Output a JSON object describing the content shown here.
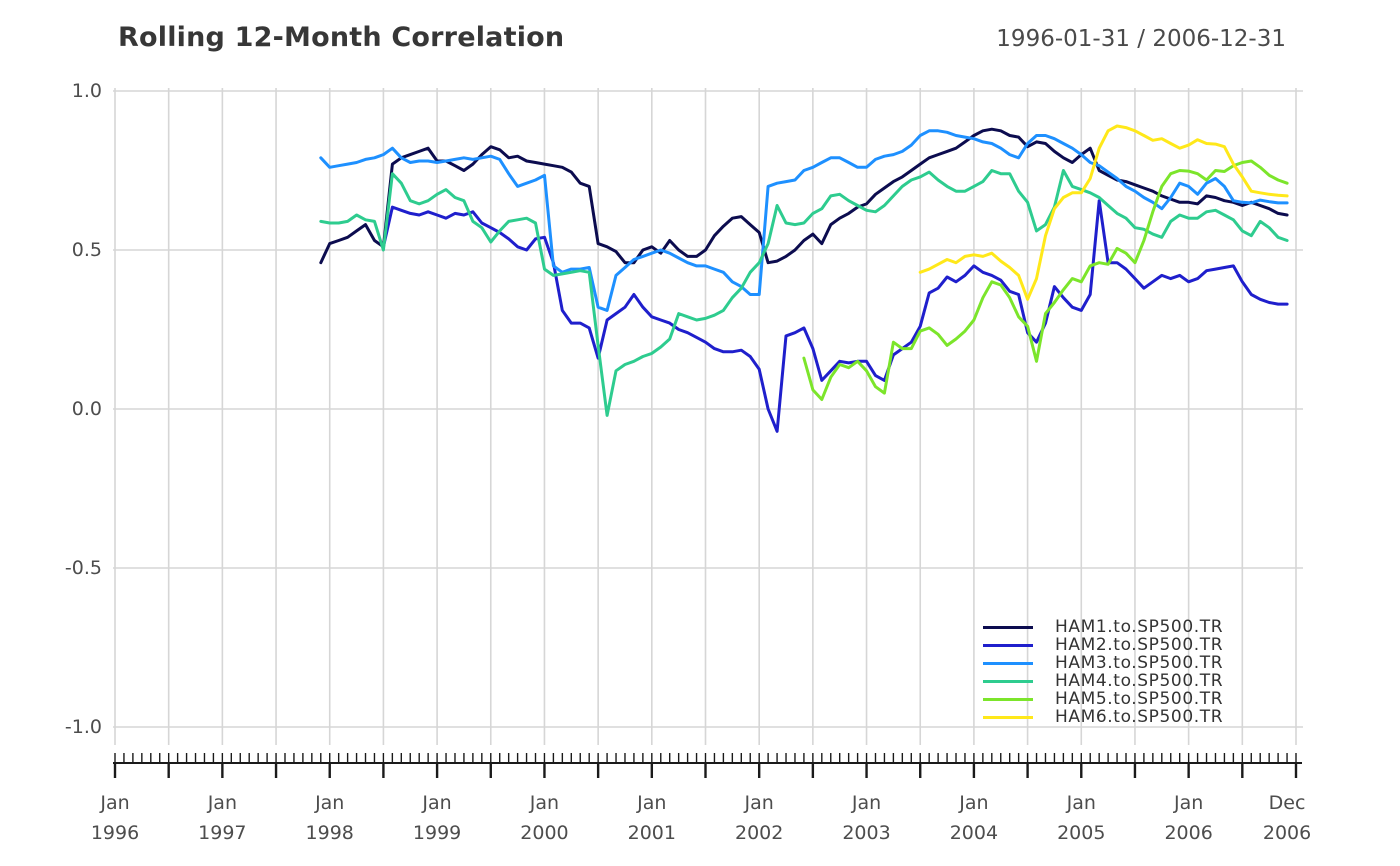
{
  "header": {
    "title": "Rolling 12-Month Correlation",
    "date_range": "1996-01-31 / 2006-12-31"
  },
  "colors": {
    "background": "#ffffff",
    "grid": "#d6d6d6",
    "axis": "#1a1a1a",
    "title_text": "#373737",
    "tick_label_text": "#4d4d4d",
    "legend_text": "#333333"
  },
  "chart_data": {
    "type": "line",
    "title": "Rolling 12-Month Correlation",
    "subtitle": "1996-01-31 / 2006-12-31",
    "xlabel": "",
    "ylabel": "",
    "x_unit": "month",
    "x_start": "1996-01",
    "x_end": "2006-12",
    "ylim": [
      -1.0,
      1.0
    ],
    "grid": true,
    "legend_position": "inside-bottom-right",
    "y_tick_values": [
      1.0,
      0.5,
      0.0,
      -0.5,
      -1.0
    ],
    "y_tick_labels": [
      "1.0",
      "0.5",
      "0.0",
      "-0.5",
      "-1.0"
    ],
    "x_minor_tick_interval_months": 1,
    "x_major_tick_interval_months": 6,
    "x_tick_labels": [
      {
        "month": "Jan",
        "year": "1996",
        "month_index": 0
      },
      {
        "month": "Jan",
        "year": "1997",
        "month_index": 12
      },
      {
        "month": "Jan",
        "year": "1998",
        "month_index": 24
      },
      {
        "month": "Jan",
        "year": "1999",
        "month_index": 36
      },
      {
        "month": "Jan",
        "year": "2000",
        "month_index": 48
      },
      {
        "month": "Jan",
        "year": "2001",
        "month_index": 60
      },
      {
        "month": "Jan",
        "year": "2002",
        "month_index": 72
      },
      {
        "month": "Jan",
        "year": "2003",
        "month_index": 84
      },
      {
        "month": "Jan",
        "year": "2004",
        "month_index": 96
      },
      {
        "month": "Jan",
        "year": "2005",
        "month_index": 108
      },
      {
        "month": "Jan",
        "year": "2006",
        "month_index": 120
      },
      {
        "month": "Dec",
        "year": "2006",
        "month_index": 131
      }
    ],
    "series": [
      {
        "name": "HAM1.to.SP500.TR",
        "color": "#0C0C4F",
        "start_month": "1997-12",
        "start_index": 23,
        "monthly_values": [
          0.46,
          0.52,
          0.53,
          0.54,
          0.56,
          0.58,
          0.53,
          0.51,
          0.77,
          0.79,
          0.8,
          0.81,
          0.82,
          0.78,
          0.78,
          0.765,
          0.75,
          0.77,
          0.8,
          0.825,
          0.815,
          0.79,
          0.795,
          0.78,
          0.775,
          0.77,
          0.765,
          0.76,
          0.745,
          0.71,
          0.7,
          0.52,
          0.51,
          0.495,
          0.46,
          0.46,
          0.5,
          0.51,
          0.49,
          0.53,
          0.5,
          0.48,
          0.48,
          0.5,
          0.545,
          0.575,
          0.6,
          0.605,
          0.58,
          0.555,
          0.46,
          0.465,
          0.48,
          0.5,
          0.53,
          0.55,
          0.52,
          0.58,
          0.6,
          0.615,
          0.635,
          0.645,
          0.675,
          0.695,
          0.715,
          0.73,
          0.75,
          0.77,
          0.79,
          0.8,
          0.81,
          0.82,
          0.84,
          0.86,
          0.875,
          0.88,
          0.875,
          0.86,
          0.855,
          0.825,
          0.84,
          0.835,
          0.81,
          0.79,
          0.775,
          0.8,
          0.82,
          0.75,
          0.735,
          0.72,
          0.715,
          0.705,
          0.695,
          0.685,
          0.67,
          0.66,
          0.65,
          0.65,
          0.645,
          0.67,
          0.665,
          0.655,
          0.65,
          0.64,
          0.65,
          0.64,
          0.63,
          0.615,
          0.61
        ]
      },
      {
        "name": "HAM2.to.SP500.TR",
        "color": "#1F1FCC",
        "start_month": "1998-07",
        "start_index": 30,
        "monthly_values": [
          0.51,
          0.635,
          0.625,
          0.615,
          0.61,
          0.62,
          0.61,
          0.6,
          0.615,
          0.61,
          0.62,
          0.585,
          0.57,
          0.555,
          0.535,
          0.51,
          0.5,
          0.535,
          0.54,
          0.46,
          0.31,
          0.27,
          0.27,
          0.255,
          0.16,
          0.28,
          0.3,
          0.32,
          0.36,
          0.32,
          0.29,
          0.28,
          0.27,
          0.25,
          0.24,
          0.225,
          0.21,
          0.19,
          0.18,
          0.18,
          0.185,
          0.165,
          0.125,
          0.0,
          -0.07,
          0.23,
          0.24,
          0.255,
          0.19,
          0.09,
          0.12,
          0.15,
          0.145,
          0.15,
          0.15,
          0.105,
          0.09,
          0.17,
          0.19,
          0.21,
          0.26,
          0.365,
          0.38,
          0.415,
          0.4,
          0.42,
          0.45,
          0.43,
          0.42,
          0.405,
          0.37,
          0.36,
          0.24,
          0.21,
          0.27,
          0.385,
          0.35,
          0.32,
          0.31,
          0.36,
          0.655,
          0.46,
          0.46,
          0.44,
          0.41,
          0.38,
          0.4,
          0.42,
          0.41,
          0.42,
          0.4,
          0.41,
          0.435,
          0.44,
          0.445,
          0.45,
          0.4,
          0.36,
          0.345,
          0.335,
          0.33,
          0.33
        ]
      },
      {
        "name": "HAM3.to.SP500.TR",
        "color": "#1E90FF",
        "start_month": "1997-12",
        "start_index": 23,
        "monthly_values": [
          0.79,
          0.76,
          0.765,
          0.77,
          0.775,
          0.785,
          0.79,
          0.8,
          0.82,
          0.79,
          0.775,
          0.78,
          0.78,
          0.775,
          0.78,
          0.785,
          0.79,
          0.785,
          0.79,
          0.795,
          0.785,
          0.74,
          0.7,
          0.71,
          0.72,
          0.735,
          0.45,
          0.43,
          0.44,
          0.44,
          0.445,
          0.32,
          0.31,
          0.42,
          0.445,
          0.47,
          0.48,
          0.49,
          0.5,
          0.49,
          0.475,
          0.46,
          0.45,
          0.45,
          0.44,
          0.43,
          0.4,
          0.385,
          0.36,
          0.36,
          0.7,
          0.71,
          0.715,
          0.72,
          0.75,
          0.76,
          0.775,
          0.79,
          0.79,
          0.775,
          0.76,
          0.76,
          0.785,
          0.795,
          0.8,
          0.81,
          0.83,
          0.86,
          0.875,
          0.875,
          0.87,
          0.86,
          0.855,
          0.85,
          0.84,
          0.835,
          0.82,
          0.8,
          0.79,
          0.835,
          0.86,
          0.86,
          0.85,
          0.835,
          0.82,
          0.8,
          0.775,
          0.765,
          0.745,
          0.725,
          0.7,
          0.685,
          0.665,
          0.65,
          0.63,
          0.665,
          0.71,
          0.7,
          0.675,
          0.71,
          0.725,
          0.7,
          0.655,
          0.65,
          0.648,
          0.657,
          0.652,
          0.648,
          0.648
        ]
      },
      {
        "name": "HAM4.to.SP500.TR",
        "color": "#2ECC8F",
        "start_month": "1997-12",
        "start_index": 23,
        "monthly_values": [
          0.59,
          0.585,
          0.585,
          0.59,
          0.61,
          0.595,
          0.59,
          0.5,
          0.74,
          0.71,
          0.655,
          0.645,
          0.655,
          0.675,
          0.69,
          0.665,
          0.655,
          0.59,
          0.57,
          0.525,
          0.56,
          0.59,
          0.595,
          0.6,
          0.585,
          0.44,
          0.42,
          0.425,
          0.43,
          0.435,
          0.43,
          0.2,
          -0.02,
          0.12,
          0.14,
          0.15,
          0.165,
          0.175,
          0.195,
          0.22,
          0.3,
          0.29,
          0.28,
          0.285,
          0.295,
          0.31,
          0.35,
          0.38,
          0.43,
          0.46,
          0.52,
          0.64,
          0.585,
          0.58,
          0.585,
          0.615,
          0.63,
          0.67,
          0.675,
          0.655,
          0.64,
          0.625,
          0.62,
          0.64,
          0.67,
          0.7,
          0.72,
          0.73,
          0.745,
          0.72,
          0.7,
          0.685,
          0.685,
          0.7,
          0.715,
          0.75,
          0.74,
          0.74,
          0.685,
          0.65,
          0.56,
          0.58,
          0.635,
          0.75,
          0.7,
          0.69,
          0.68,
          0.665,
          0.64,
          0.615,
          0.6,
          0.57,
          0.565,
          0.55,
          0.54,
          0.59,
          0.61,
          0.6,
          0.6,
          0.62,
          0.625,
          0.61,
          0.595,
          0.56,
          0.545,
          0.59,
          0.57,
          0.54,
          0.53
        ]
      },
      {
        "name": "HAM5.to.SP500.TR",
        "color": "#7CE52B",
        "start_month": "2002-06",
        "start_index": 77,
        "monthly_values": [
          0.16,
          0.06,
          0.03,
          0.1,
          0.14,
          0.13,
          0.15,
          0.12,
          0.07,
          0.05,
          0.21,
          0.19,
          0.19,
          0.245,
          0.255,
          0.235,
          0.2,
          0.22,
          0.245,
          0.28,
          0.35,
          0.4,
          0.39,
          0.35,
          0.29,
          0.26,
          0.15,
          0.3,
          0.335,
          0.375,
          0.41,
          0.4,
          0.45,
          0.46,
          0.455,
          0.505,
          0.49,
          0.46,
          0.53,
          0.62,
          0.7,
          0.74,
          0.75,
          0.748,
          0.74,
          0.72,
          0.75,
          0.747,
          0.765,
          0.775,
          0.78,
          0.76,
          0.735,
          0.72,
          0.71
        ]
      },
      {
        "name": "HAM6.to.SP500.TR",
        "color": "#FFE81A",
        "start_month": "2003-07",
        "start_index": 90,
        "monthly_values": [
          0.43,
          0.44,
          0.455,
          0.47,
          0.46,
          0.48,
          0.485,
          0.48,
          0.49,
          0.465,
          0.445,
          0.42,
          0.345,
          0.41,
          0.545,
          0.63,
          0.665,
          0.68,
          0.68,
          0.725,
          0.82,
          0.875,
          0.89,
          0.885,
          0.875,
          0.86,
          0.845,
          0.85,
          0.835,
          0.82,
          0.83,
          0.847,
          0.835,
          0.833,
          0.825,
          0.77,
          0.73,
          0.685,
          0.68,
          0.675,
          0.672,
          0.67
        ]
      }
    ]
  },
  "legend": {
    "items": [
      {
        "label": "HAM1.to.SP500.TR",
        "color": "#0C0C4F"
      },
      {
        "label": "HAM2.to.SP500.TR",
        "color": "#1F1FCC"
      },
      {
        "label": "HAM3.to.SP500.TR",
        "color": "#1E90FF"
      },
      {
        "label": "HAM4.to.SP500.TR",
        "color": "#2ECC8F"
      },
      {
        "label": "HAM5.to.SP500.TR",
        "color": "#7CE52B"
      },
      {
        "label": "HAM6.to.SP500.TR",
        "color": "#FFE81A"
      }
    ]
  }
}
